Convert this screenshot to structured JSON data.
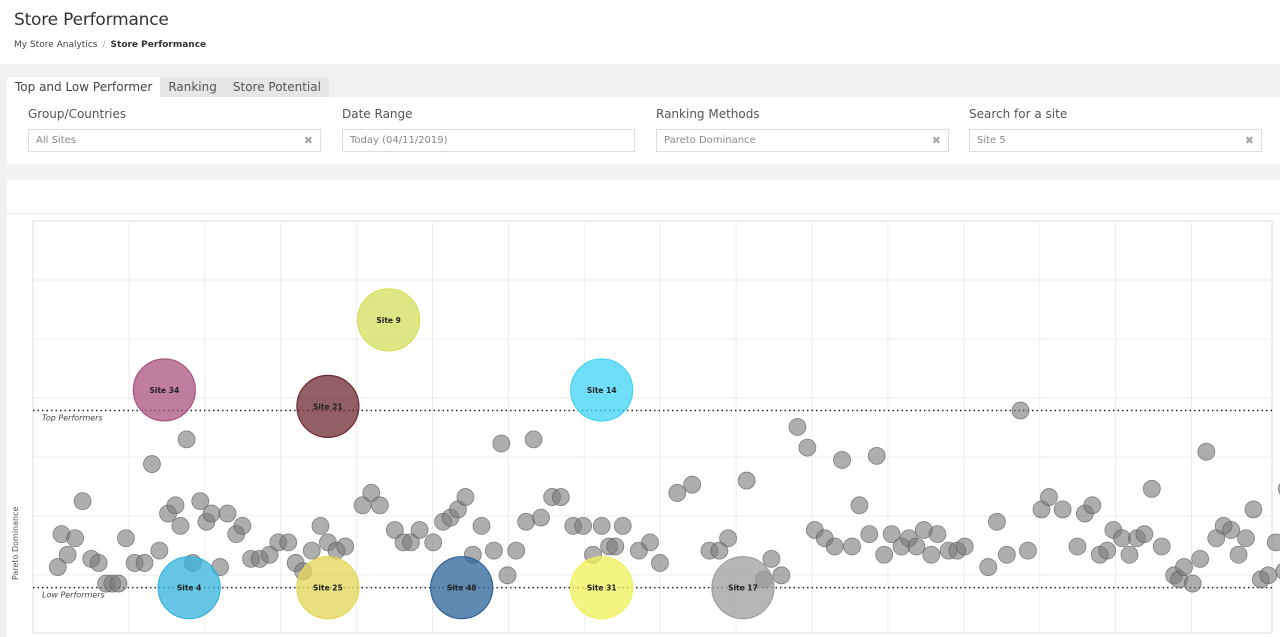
{
  "header": {
    "title": "Store Performance",
    "breadcrumb": {
      "root": "My Store Analytics",
      "separator": "/",
      "current": "Store Performance"
    }
  },
  "tabs": [
    {
      "label": "Top and Low Performer",
      "active": true
    },
    {
      "label": "Ranking",
      "active": false
    },
    {
      "label": "Store Potential",
      "active": false
    }
  ],
  "filters": {
    "group": {
      "label": "Group/Countries",
      "value": "All Sites",
      "clear": "✖"
    },
    "date": {
      "label": "Date Range",
      "value": "Today (04/11/2019)"
    },
    "ranking": {
      "label": "Ranking Methods",
      "value": "Pareto Dominance",
      "clear": "✖"
    },
    "search": {
      "label": "Search for a site",
      "value": "Site 5",
      "clear": "✖"
    }
  },
  "chart_data": {
    "type": "scatter",
    "ylabel": "Pareto Dominance",
    "xlabel": "",
    "reference_lines": [
      {
        "label": "Top Performers",
        "y": 0.54
      },
      {
        "label": "Low Performers",
        "y": 0.11
      }
    ],
    "highlighted_sites": [
      {
        "name": "Site 9",
        "x": 0.287,
        "y": 0.76,
        "color": "#d4df5c"
      },
      {
        "name": "Site 34",
        "x": 0.106,
        "y": 0.59,
        "color": "#a9527f"
      },
      {
        "name": "Site 21",
        "x": 0.238,
        "y": 0.55,
        "color": "#6e2a30"
      },
      {
        "name": "Site 14",
        "x": 0.459,
        "y": 0.59,
        "color": "#3fd3f5"
      },
      {
        "name": "Site 4",
        "x": 0.126,
        "y": 0.11,
        "color": "#33b3dc"
      },
      {
        "name": "Site 25",
        "x": 0.238,
        "y": 0.11,
        "color": "#e1d754"
      },
      {
        "name": "Site 48",
        "x": 0.346,
        "y": 0.11,
        "color": "#2c6399"
      },
      {
        "name": "Site 31",
        "x": 0.459,
        "y": 0.11,
        "color": "#f0f05a"
      },
      {
        "name": "Site 17",
        "x": 0.573,
        "y": 0.11,
        "color": "#9d9d9d"
      }
    ],
    "other_sites": [
      [
        0.02,
        0.16
      ],
      [
        0.023,
        0.24
      ],
      [
        0.028,
        0.19
      ],
      [
        0.034,
        0.23
      ],
      [
        0.04,
        0.32
      ],
      [
        0.047,
        0.18
      ],
      [
        0.053,
        0.17
      ],
      [
        0.059,
        0.12
      ],
      [
        0.064,
        0.12
      ],
      [
        0.069,
        0.12
      ],
      [
        0.075,
        0.23
      ],
      [
        0.082,
        0.17
      ],
      [
        0.09,
        0.17
      ],
      [
        0.096,
        0.41
      ],
      [
        0.102,
        0.2
      ],
      [
        0.109,
        0.29
      ],
      [
        0.115,
        0.31
      ],
      [
        0.119,
        0.26
      ],
      [
        0.124,
        0.47
      ],
      [
        0.129,
        0.17
      ],
      [
        0.135,
        0.32
      ],
      [
        0.14,
        0.27
      ],
      [
        0.144,
        0.29
      ],
      [
        0.151,
        0.16
      ],
      [
        0.157,
        0.29
      ],
      [
        0.164,
        0.24
      ],
      [
        0.169,
        0.26
      ],
      [
        0.176,
        0.18
      ],
      [
        0.183,
        0.18
      ],
      [
        0.191,
        0.19
      ],
      [
        0.198,
        0.22
      ],
      [
        0.206,
        0.22
      ],
      [
        0.212,
        0.17
      ],
      [
        0.218,
        0.15
      ],
      [
        0.225,
        0.2
      ],
      [
        0.232,
        0.26
      ],
      [
        0.238,
        0.22
      ],
      [
        0.245,
        0.2
      ],
      [
        0.252,
        0.21
      ],
      [
        0.266,
        0.31
      ],
      [
        0.273,
        0.34
      ],
      [
        0.28,
        0.31
      ],
      [
        0.292,
        0.25
      ],
      [
        0.299,
        0.22
      ],
      [
        0.305,
        0.22
      ],
      [
        0.312,
        0.25
      ],
      [
        0.323,
        0.22
      ],
      [
        0.331,
        0.27
      ],
      [
        0.337,
        0.28
      ],
      [
        0.343,
        0.3
      ],
      [
        0.349,
        0.33
      ],
      [
        0.355,
        0.19
      ],
      [
        0.362,
        0.26
      ],
      [
        0.372,
        0.2
      ],
      [
        0.378,
        0.46
      ],
      [
        0.383,
        0.14
      ],
      [
        0.39,
        0.2
      ],
      [
        0.398,
        0.27
      ],
      [
        0.404,
        0.47
      ],
      [
        0.41,
        0.28
      ],
      [
        0.419,
        0.33
      ],
      [
        0.426,
        0.33
      ],
      [
        0.436,
        0.26
      ],
      [
        0.444,
        0.26
      ],
      [
        0.452,
        0.19
      ],
      [
        0.459,
        0.26
      ],
      [
        0.465,
        0.21
      ],
      [
        0.47,
        0.21
      ],
      [
        0.476,
        0.26
      ],
      [
        0.489,
        0.2
      ],
      [
        0.498,
        0.22
      ],
      [
        0.506,
        0.17
      ],
      [
        0.52,
        0.34
      ],
      [
        0.532,
        0.36
      ],
      [
        0.546,
        0.2
      ],
      [
        0.554,
        0.2
      ],
      [
        0.561,
        0.23
      ],
      [
        0.576,
        0.37
      ],
      [
        0.59,
        0.13
      ],
      [
        0.596,
        0.18
      ],
      [
        0.604,
        0.14
      ],
      [
        0.617,
        0.5
      ],
      [
        0.625,
        0.45
      ],
      [
        0.631,
        0.25
      ],
      [
        0.639,
        0.23
      ],
      [
        0.647,
        0.21
      ],
      [
        0.653,
        0.42
      ],
      [
        0.661,
        0.21
      ],
      [
        0.667,
        0.31
      ],
      [
        0.675,
        0.24
      ],
      [
        0.681,
        0.43
      ],
      [
        0.687,
        0.19
      ],
      [
        0.693,
        0.24
      ],
      [
        0.701,
        0.21
      ],
      [
        0.707,
        0.23
      ],
      [
        0.713,
        0.21
      ],
      [
        0.719,
        0.25
      ],
      [
        0.725,
        0.19
      ],
      [
        0.73,
        0.24
      ],
      [
        0.739,
        0.2
      ],
      [
        0.746,
        0.2
      ],
      [
        0.752,
        0.21
      ],
      [
        0.771,
        0.16
      ],
      [
        0.778,
        0.27
      ],
      [
        0.786,
        0.19
      ],
      [
        0.797,
        0.54
      ],
      [
        0.803,
        0.2
      ],
      [
        0.814,
        0.3
      ],
      [
        0.82,
        0.33
      ],
      [
        0.831,
        0.3
      ],
      [
        0.843,
        0.21
      ],
      [
        0.849,
        0.29
      ],
      [
        0.855,
        0.31
      ],
      [
        0.861,
        0.19
      ],
      [
        0.867,
        0.2
      ],
      [
        0.872,
        0.25
      ],
      [
        0.879,
        0.23
      ],
      [
        0.885,
        0.19
      ],
      [
        0.891,
        0.23
      ],
      [
        0.897,
        0.24
      ],
      [
        0.903,
        0.35
      ],
      [
        0.911,
        0.21
      ],
      [
        0.921,
        0.14
      ],
      [
        0.925,
        0.13
      ],
      [
        0.929,
        0.16
      ],
      [
        0.936,
        0.12
      ],
      [
        0.942,
        0.18
      ],
      [
        0.947,
        0.44
      ],
      [
        0.955,
        0.23
      ],
      [
        0.961,
        0.26
      ],
      [
        0.967,
        0.25
      ],
      [
        0.973,
        0.19
      ],
      [
        0.979,
        0.23
      ],
      [
        0.985,
        0.3
      ],
      [
        0.991,
        0.13
      ],
      [
        0.997,
        0.14
      ],
      [
        1.003,
        0.22
      ],
      [
        1.01,
        0.15
      ],
      [
        1.012,
        0.35
      ],
      [
        1.026,
        0.25
      ],
      [
        1.035,
        0.24
      ],
      [
        1.039,
        0.24
      ]
    ],
    "grid": true,
    "xlim": [
      0,
      1
    ],
    "ylim": [
      0,
      1
    ]
  }
}
